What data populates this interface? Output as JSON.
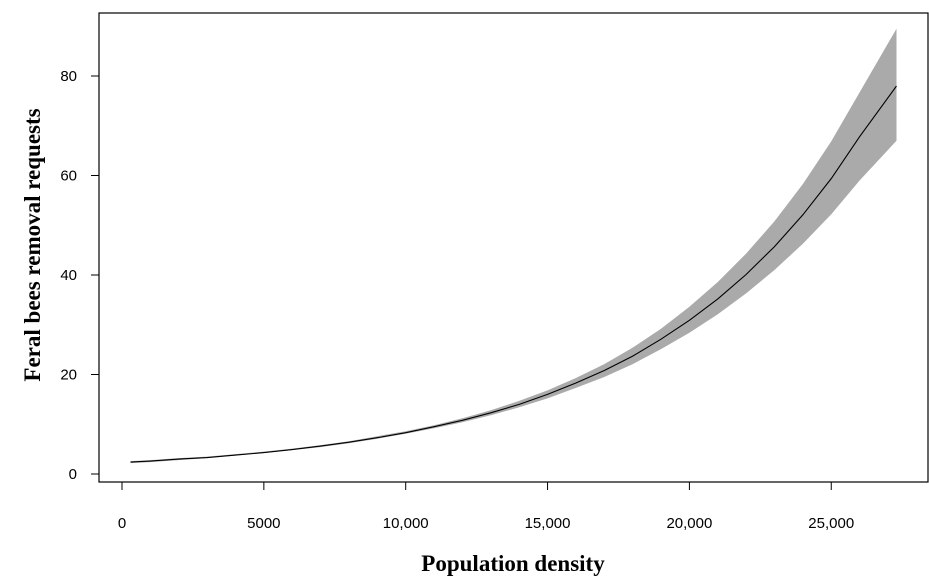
{
  "chart_data": {
    "type": "line",
    "title": "",
    "xlabel": "Population density",
    "ylabel": "Feral bees removal requests",
    "xlim": [
      0,
      28000
    ],
    "ylim": [
      0,
      90
    ],
    "x_ticks": [
      0,
      5000,
      10000,
      15000,
      20000,
      25000
    ],
    "x_tick_labels": [
      "0",
      "5000",
      "10,000",
      "15,000",
      "20,000",
      "25,000"
    ],
    "y_ticks": [
      0,
      20,
      40,
      60,
      80
    ],
    "y_tick_labels": [
      "0",
      "20",
      "40",
      "60",
      "80"
    ],
    "grid": false,
    "legend": "none",
    "colors": {
      "line": "#000000",
      "band": "#aaaaaa"
    },
    "series": [
      {
        "x": [
          300,
          1000,
          2000,
          3000,
          4000,
          5000,
          6000,
          7000,
          8000,
          9000,
          10000,
          11000,
          12000,
          13000,
          14000,
          15000,
          16000,
          17000,
          18000,
          19000,
          20000,
          21000,
          22000,
          23000,
          24000,
          25000,
          26000,
          27300
        ],
        "y": [
          2.4,
          2.6,
          3.0,
          3.3,
          3.8,
          4.3,
          4.9,
          5.6,
          6.4,
          7.3,
          8.3,
          9.5,
          10.8,
          12.3,
          14.0,
          16.0,
          18.3,
          20.8,
          23.7,
          27.1,
          30.9,
          35.2,
          40.1,
          45.7,
          52.1,
          59.4,
          67.8,
          78.0
        ],
        "lower": [
          2.2,
          2.4,
          2.8,
          3.2,
          3.7,
          4.2,
          4.8,
          5.4,
          6.2,
          7.1,
          8.1,
          9.2,
          10.4,
          11.8,
          13.4,
          15.2,
          17.3,
          19.5,
          22.1,
          25.1,
          28.4,
          32.1,
          36.3,
          41.0,
          46.3,
          52.2,
          59.0,
          67.0
        ],
        "upper": [
          2.6,
          2.8,
          3.2,
          3.5,
          4.0,
          4.5,
          5.1,
          5.8,
          6.6,
          7.6,
          8.6,
          9.8,
          11.2,
          12.8,
          14.7,
          16.8,
          19.3,
          22.1,
          25.4,
          29.2,
          33.6,
          38.6,
          44.3,
          50.8,
          58.3,
          66.9,
          76.7,
          89.5
        ]
      }
    ]
  }
}
